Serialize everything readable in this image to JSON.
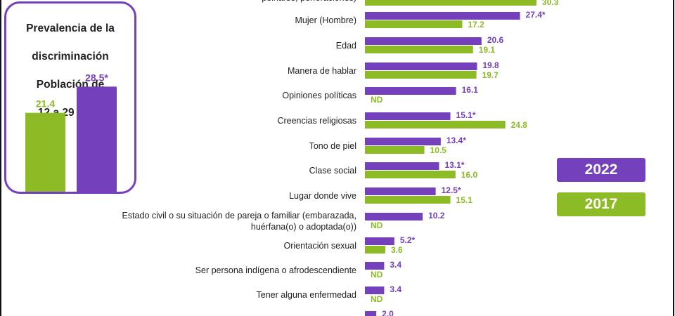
{
  "colors": {
    "y2022": "#7440bc",
    "y2017": "#8cbb25",
    "text": "#222222"
  },
  "legend": {
    "label_2022": "2022",
    "label_2017": "2017"
  },
  "panel": {
    "title": "Prevalencia de la discriminación Población de 12 a 29 años",
    "title_lines": [
      "Prevalencia de la",
      "discriminación",
      "Población de",
      "12 a 29 años"
    ]
  },
  "chart_data": [
    {
      "type": "bar",
      "orientation": "vertical",
      "categories": [
        "2017",
        "2022"
      ],
      "values": [
        21.4,
        28.5
      ],
      "value_labels": [
        "21.4",
        "28.5*"
      ],
      "ylim": [
        0,
        40
      ],
      "title": "Prevalencia de la discriminación Población de 12 a 29 años"
    },
    {
      "type": "bar",
      "orientation": "horizontal",
      "categories": [
        "peinarse, perforaciones)",
        "Mujer (Hombre)",
        "Edad",
        "Manera de hablar",
        "Opiniones políticas",
        "Creencias religiosas",
        "Tono de piel",
        "Clase social",
        "Lugar donde vive",
        "Estado civil o su situación de pareja o familiar (embarazada, huérfana(o) o adoptada(o))",
        "Orientación sexual",
        "Ser persona indígena o afrodescendiente",
        "Tener alguna enfermedad",
        ""
      ],
      "category_lines": [
        [
          "peinarse, perforaciones)"
        ],
        [
          "Mujer (Hombre)"
        ],
        [
          "Edad"
        ],
        [
          "Manera de hablar"
        ],
        [
          "Opiniones políticas"
        ],
        [
          "Creencias religiosas"
        ],
        [
          "Tono de piel"
        ],
        [
          "Clase social"
        ],
        [
          "Lugar donde vive"
        ],
        [
          "Estado civil o su situación de pareja o familiar (embarazada,",
          "huérfana(o) o adoptada(o))"
        ],
        [
          "Orientación  sexual"
        ],
        [
          "Ser persona indígena o afrodescendiente"
        ],
        [
          "Tener alguna enfermedad"
        ],
        []
      ],
      "series": [
        {
          "name": "2022",
          "values": [
            null,
            27.4,
            20.6,
            19.8,
            16.1,
            15.1,
            13.4,
            13.1,
            12.5,
            10.2,
            5.2,
            3.4,
            3.4,
            2.0
          ],
          "labels": [
            "",
            "27.4*",
            "20.6",
            "19.8",
            "16.1",
            "15.1*",
            "13.4*",
            "13.1*",
            "12.5*",
            "10.2",
            "5.2*",
            "3.4",
            "3.4",
            "2.0"
          ]
        },
        {
          "name": "2017",
          "values": [
            30.3,
            17.2,
            19.1,
            19.7,
            null,
            24.8,
            10.5,
            16.0,
            15.1,
            null,
            3.6,
            null,
            null,
            null
          ],
          "labels": [
            "30.3",
            "17.2",
            "19.1",
            "19.7",
            "ND",
            "24.8",
            "10.5",
            "16.0",
            "15.1",
            "ND",
            "3.6",
            "ND",
            "ND",
            ""
          ]
        }
      ]
    }
  ]
}
